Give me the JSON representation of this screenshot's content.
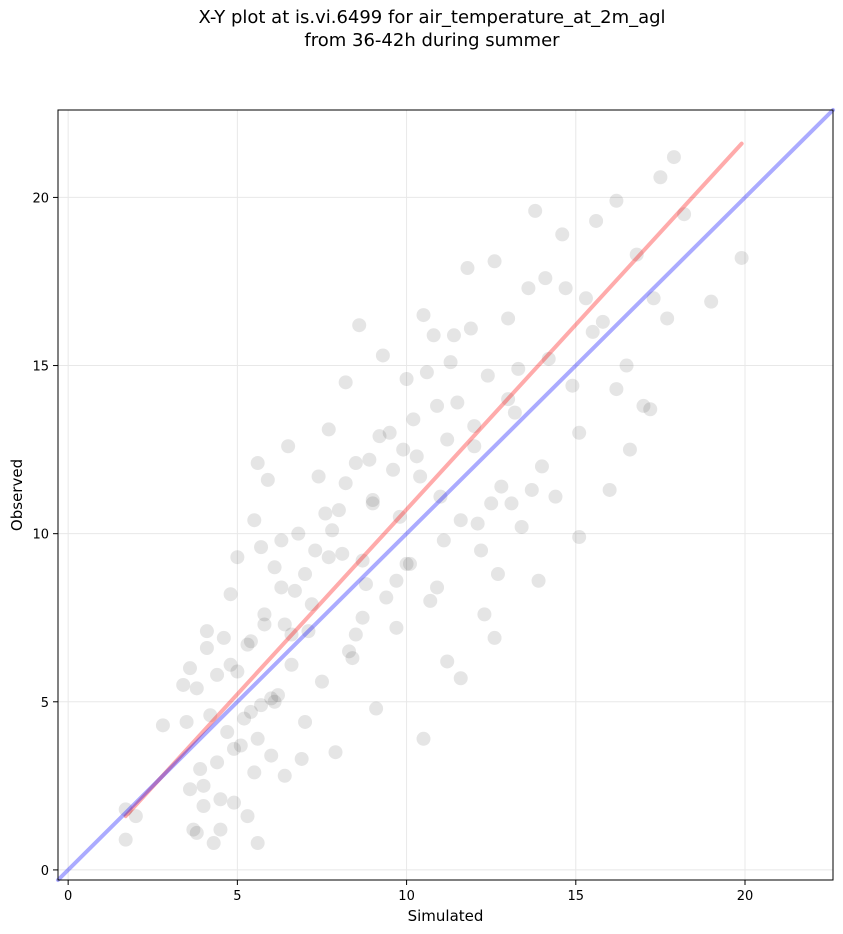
{
  "chart_data": {
    "type": "scatter",
    "title": "X-Y plot at is.vi.6499 for air_temperature_at_2m_agl",
    "subtitle": "from 36-42h during summer",
    "xlabel": "Simulated",
    "ylabel": "Observed",
    "xlim": [
      -0.3,
      22.6
    ],
    "ylim": [
      -0.3,
      22.6
    ],
    "xticks": [
      0,
      5,
      10,
      15,
      20
    ],
    "yticks": [
      0,
      5,
      10,
      15,
      20
    ],
    "grid": true,
    "scatter_color": "#000000",
    "scatter_alpha": 0.1,
    "series": [
      {
        "kind": "points",
        "x": [
          1.7,
          2.0,
          1.7,
          2.8,
          3.4,
          3.6,
          3.6,
          3.8,
          3.8,
          3.7,
          3.9,
          4.0,
          4.1,
          4.2,
          4.3,
          4.4,
          4.4,
          4.5,
          4.6,
          4.7,
          4.8,
          4.9,
          5.0,
          5.1,
          5.0,
          5.2,
          5.3,
          5.4,
          5.5,
          5.5,
          5.6,
          5.6,
          5.7,
          5.8,
          5.9,
          6.0,
          6.1,
          6.2,
          6.3,
          6.4,
          6.5,
          6.6,
          6.8,
          7.0,
          7.2,
          7.4,
          7.5,
          7.7,
          7.9,
          8.1,
          8.2,
          8.3,
          8.5,
          8.6,
          8.8,
          9.0,
          9.1,
          9.3,
          9.5,
          9.7,
          9.8,
          10.0,
          10.1,
          10.3,
          10.5,
          10.7,
          10.9,
          11.0,
          11.2,
          11.4,
          11.6,
          11.8,
          12.0,
          12.2,
          12.4,
          12.6,
          12.8,
          13.0,
          13.2,
          13.4,
          13.6,
          13.8,
          14.0,
          14.2,
          14.4,
          14.6,
          14.9,
          15.1,
          15.3,
          15.6,
          15.8,
          16.0,
          16.2,
          16.5,
          16.8,
          17.0,
          17.3,
          17.5,
          17.7,
          17.9,
          18.2,
          19.0,
          19.9,
          8.7,
          7.6,
          5.7,
          6.6,
          9.7,
          10.5,
          11.2,
          12.6,
          13.3,
          16.2,
          15.1,
          14.7,
          17.2,
          13.9,
          12.1,
          11.6,
          10.8,
          9.2,
          8.4,
          7.3,
          6.9,
          6.1,
          5.4,
          4.8,
          4.1,
          3.5,
          9.9,
          10.4,
          11.9,
          12.7,
          13.1,
          14.1,
          15.5,
          16.6,
          12.3,
          11.3,
          10.2,
          9.4,
          8.9,
          8.0,
          7.1,
          6.4,
          5.6,
          4.9,
          4.5,
          4.0,
          13.7,
          13.0,
          12.0,
          11.1,
          10.6,
          9.6,
          8.7,
          8.2,
          7.8,
          7.0,
          6.3,
          5.8,
          5.3,
          12.5,
          11.5,
          10.9,
          10.0,
          9.0,
          8.5,
          7.7,
          6.7,
          6.0
        ],
        "y": [
          1.8,
          1.6,
          0.9,
          4.3,
          5.5,
          6.0,
          2.4,
          1.1,
          5.4,
          1.2,
          3.0,
          1.9,
          7.1,
          4.6,
          0.8,
          5.8,
          3.2,
          1.2,
          6.9,
          4.1,
          8.2,
          2.0,
          5.9,
          3.7,
          9.3,
          4.5,
          1.6,
          6.8,
          2.9,
          10.4,
          0.8,
          12.1,
          4.9,
          7.3,
          11.6,
          3.4,
          9.0,
          5.2,
          8.4,
          2.8,
          12.6,
          6.1,
          10.0,
          4.4,
          7.9,
          11.7,
          5.6,
          13.1,
          3.5,
          9.4,
          14.5,
          6.5,
          12.1,
          16.2,
          8.5,
          11.0,
          4.8,
          15.3,
          13.0,
          7.2,
          10.5,
          14.6,
          9.1,
          12.3,
          16.5,
          8.0,
          13.8,
          11.1,
          6.2,
          15.9,
          10.4,
          17.9,
          12.6,
          9.5,
          14.7,
          18.1,
          11.4,
          16.4,
          13.6,
          10.2,
          17.3,
          19.6,
          12.0,
          15.2,
          11.1,
          18.9,
          14.4,
          13.0,
          17.0,
          19.3,
          16.3,
          11.3,
          19.9,
          15.0,
          18.3,
          13.8,
          17.0,
          20.6,
          16.4,
          21.2,
          19.5,
          16.9,
          18.2,
          7.5,
          10.6,
          9.6,
          7.0,
          8.6,
          3.9,
          12.8,
          6.9,
          14.9,
          14.3,
          9.9,
          17.3,
          13.7,
          8.6,
          10.3,
          5.7,
          15.9,
          12.9,
          6.3,
          9.5,
          3.3,
          5.0,
          4.7,
          6.1,
          6.6,
          4.4,
          12.5,
          11.7,
          16.1,
          8.8,
          10.9,
          17.6,
          16.0,
          12.5,
          7.6,
          15.1,
          13.4,
          8.1,
          12.2,
          10.7,
          7.1,
          7.3,
          3.9,
          3.6,
          2.1,
          2.5,
          11.3,
          14.0,
          13.2,
          9.8,
          14.8,
          11.9,
          9.2,
          11.5,
          10.1,
          8.8,
          9.8,
          7.6,
          6.7,
          10.9,
          13.9,
          8.4,
          9.1,
          10.9,
          7.0,
          9.3,
          8.3,
          5.1
        ]
      },
      {
        "kind": "line",
        "color": "#ff0000",
        "x": [
          1.7,
          19.9
        ],
        "y": [
          1.6,
          21.6
        ]
      },
      {
        "kind": "line",
        "color": "#0000ff",
        "x": [
          -0.3,
          22.6
        ],
        "y": [
          -0.3,
          22.6
        ]
      }
    ]
  }
}
